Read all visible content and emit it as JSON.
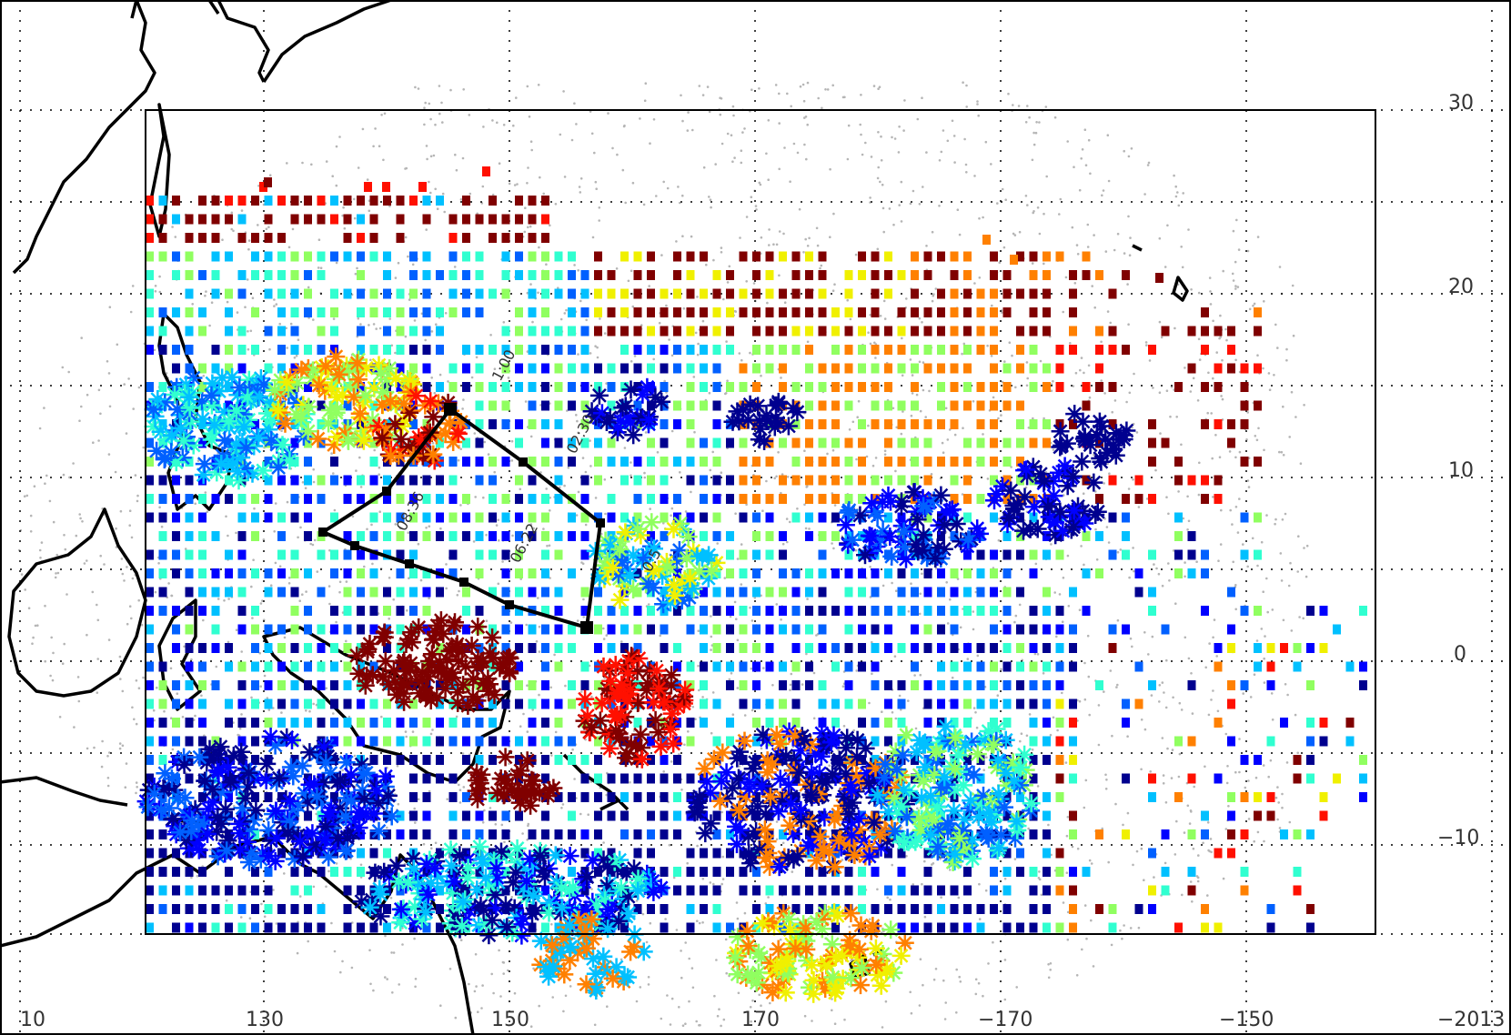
{
  "map": {
    "lon_ticks": [
      "10",
      "130",
      "150",
      "170",
      "−170",
      "−150",
      "−2013"
    ],
    "lat_ticks": [
      "30",
      "20",
      "10",
      "0",
      "−10"
    ],
    "track_labels": [
      "02:30",
      "08:36",
      "06:22",
      "1:00",
      "0:5"
    ],
    "legend_marker_kinds": [
      "square",
      "asterisk"
    ],
    "colorscale": [
      "#00008f",
      "#0000ff",
      "#0060ff",
      "#00c0ff",
      "#30ffd0",
      "#90ff60",
      "#f0f000",
      "#ff8000",
      "#ff1000",
      "#800000"
    ],
    "land_color": "#ffffff",
    "coast_color": "#000000",
    "track_color": "#000000"
  }
}
